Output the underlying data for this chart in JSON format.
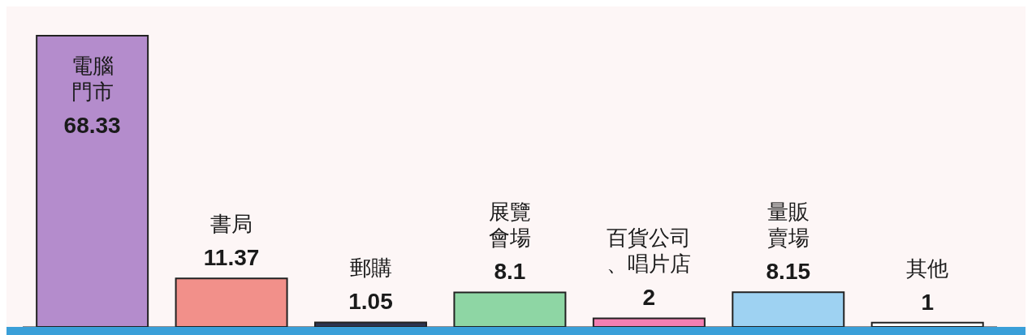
{
  "chart_data": {
    "type": "bar",
    "categories": [
      "電腦門市",
      "書局",
      "郵購",
      "展覽會場",
      "百貨公司、唱片店",
      "量販賣場",
      "其他"
    ],
    "values": [
      68.33,
      11.37,
      1.05,
      8.1,
      2,
      8.15,
      1
    ],
    "colors": [
      "#b48ccc",
      "#f2908a",
      "#2c3450",
      "#8ed6a4",
      "#f27fb2",
      "#9ed2f2",
      "#ffffff"
    ],
    "data_labels": true
  }
}
